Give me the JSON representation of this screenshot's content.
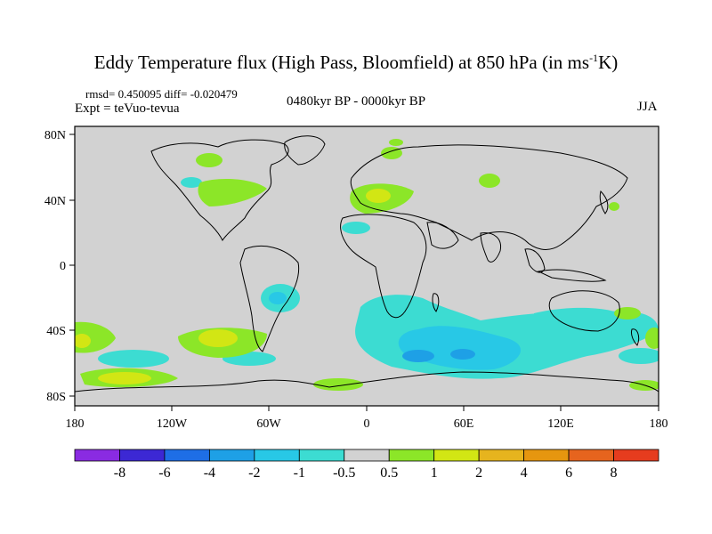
{
  "title": {
    "main": "Eddy Temperature flux (High Pass, Bloomfield) at 850 hPa (in ms",
    "exp": "-1",
    "tail": "K)"
  },
  "stats": "rmsd= 0.450095 diff= -0.020479",
  "expt": "Expt = teVuo-tevua",
  "period": "0480kyr BP - 0000kyr BP",
  "season": "JJA",
  "axes": {
    "lat_labels": [
      "80N",
      "40N",
      "0",
      "40S",
      "80S"
    ],
    "lon_labels": [
      "180",
      "120W",
      "60W",
      "0",
      "60E",
      "120E",
      "180"
    ]
  },
  "colorbar": {
    "colors": [
      "#8a2be2",
      "#3c28d4",
      "#1e6ee6",
      "#1ea0e6",
      "#28c8e6",
      "#3cdcd2",
      "#d2d2d2",
      "#8ce628",
      "#d2e614",
      "#e6b41e",
      "#e6960f",
      "#e6641e",
      "#e63c1e"
    ],
    "labels": [
      "-8",
      "-6",
      "-4",
      "-2",
      "-1",
      "-0.5",
      "0.5",
      "1",
      "2",
      "4",
      "6",
      "8"
    ]
  }
}
